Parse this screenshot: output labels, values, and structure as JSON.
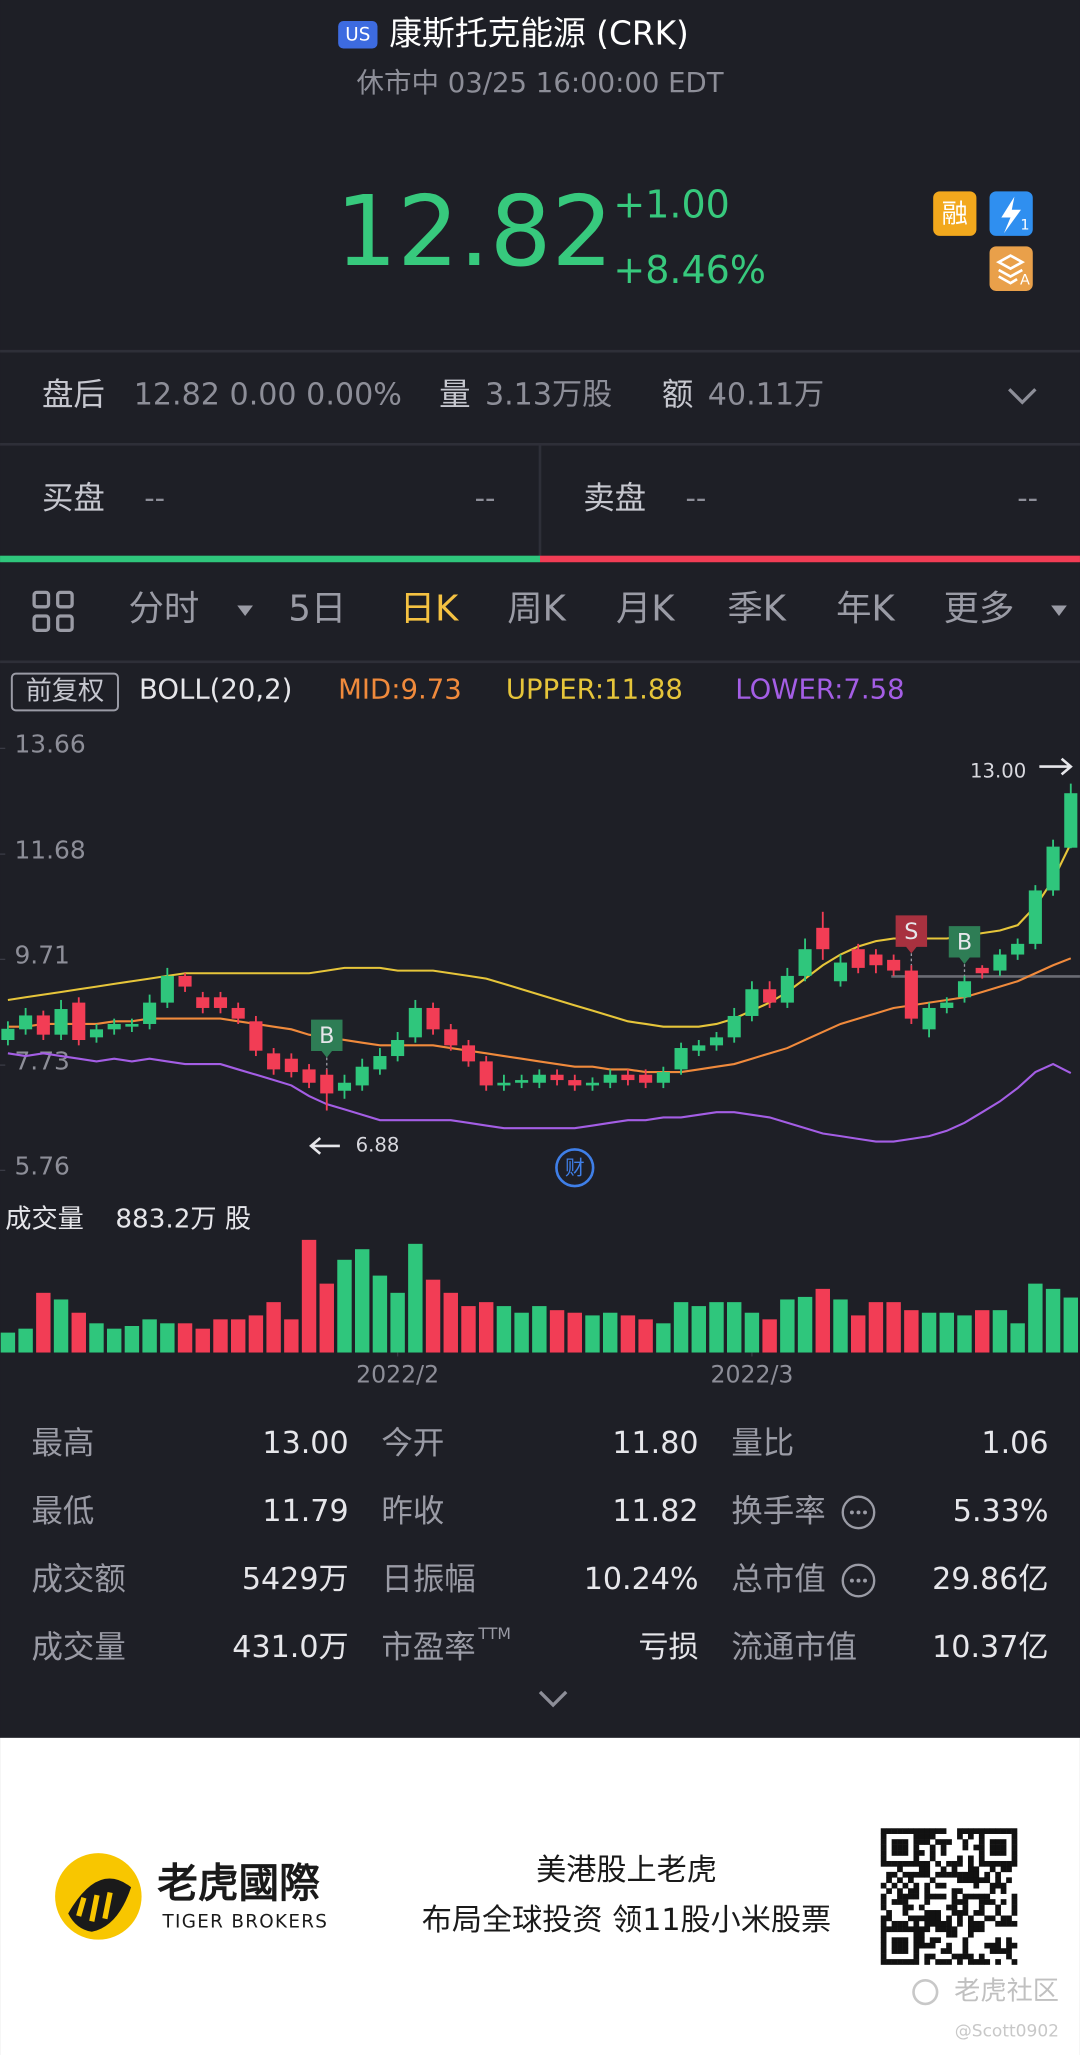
{
  "header": {
    "badge": "US",
    "title": "康斯托克能源 (CRK)",
    "status": "休市中 03/25 16:00:00 EDT"
  },
  "quote": {
    "price": "12.82",
    "change": "+1.00",
    "change_pct": "+8.46%",
    "badges": [
      "融",
      "1",
      "A"
    ]
  },
  "after_hours": {
    "label": "盘后",
    "text": "12.82 0.00 0.00%",
    "volume_label": "量",
    "volume": "3.13万股",
    "amount_label": "额",
    "amount": "40.11万"
  },
  "order_book": {
    "bid_label": "买盘",
    "bid": "--",
    "bid_size": "--",
    "ask_label": "卖盘",
    "ask": "--",
    "ask_size": "--"
  },
  "tabs": {
    "items": [
      "分时",
      "5日",
      "日K",
      "周K",
      "月K",
      "季K",
      "年K",
      "更多"
    ],
    "active": 2
  },
  "chart_data": {
    "type": "candlestick",
    "adjust_label": "前复权",
    "indicator": "BOLL(20,2)",
    "open": [
      8.2,
      8.4,
      8.66,
      8.3,
      8.9,
      8.25,
      8.4,
      8.45,
      8.5,
      8.9,
      9.4,
      9.0,
      9.0,
      8.8,
      8.55,
      7.95,
      7.85,
      7.65,
      7.55,
      7.25,
      7.35,
      7.65,
      7.9,
      8.25,
      8.8,
      8.4,
      8.1,
      7.8,
      7.35,
      7.4,
      7.4,
      7.55,
      7.45,
      7.35,
      7.4,
      7.55,
      7.55,
      7.4,
      7.65,
      8.0,
      8.1,
      8.25,
      8.65,
      9.15,
      8.9,
      9.4,
      10.3,
      9.3,
      9.9,
      9.8,
      9.7,
      9.5,
      8.4,
      8.8,
      9.0,
      9.55,
      9.5,
      9.8,
      10.0,
      11.0,
      11.8
    ],
    "close": [
      8.41,
      8.66,
      8.3,
      8.78,
      8.2,
      8.4,
      8.5,
      8.5,
      8.9,
      9.4,
      9.2,
      8.8,
      8.8,
      8.6,
      8.0,
      7.65,
      7.6,
      7.4,
      7.2,
      7.4,
      7.7,
      7.9,
      8.2,
      8.8,
      8.4,
      8.1,
      7.8,
      7.35,
      7.4,
      7.45,
      7.55,
      7.45,
      7.35,
      7.4,
      7.55,
      7.45,
      7.4,
      7.6,
      8.05,
      8.1,
      8.25,
      8.65,
      9.15,
      8.9,
      9.4,
      9.9,
      9.9,
      9.65,
      9.55,
      9.6,
      9.5,
      8.6,
      8.8,
      8.9,
      9.3,
      9.45,
      9.8,
      10.0,
      11.0,
      11.82,
      12.82
    ],
    "high": [
      8.55,
      8.8,
      8.75,
      8.95,
      9.0,
      8.5,
      8.6,
      8.6,
      9.05,
      9.55,
      9.45,
      9.1,
      9.1,
      8.9,
      8.65,
      8.05,
      7.95,
      7.75,
      7.65,
      7.55,
      7.85,
      8.05,
      8.35,
      8.95,
      8.9,
      8.5,
      8.2,
      7.9,
      7.55,
      7.55,
      7.65,
      7.65,
      7.55,
      7.5,
      7.65,
      7.65,
      7.65,
      7.7,
      8.15,
      8.2,
      8.35,
      8.8,
      9.3,
      9.3,
      9.55,
      10.1,
      10.6,
      9.8,
      10.0,
      9.9,
      9.8,
      9.6,
      8.9,
      9.0,
      9.4,
      9.6,
      9.9,
      10.1,
      11.1,
      11.95,
      13.0
    ],
    "low": [
      8.1,
      8.3,
      8.2,
      8.2,
      8.1,
      8.15,
      8.3,
      8.35,
      8.4,
      8.8,
      9.1,
      8.7,
      8.7,
      8.5,
      7.9,
      7.55,
      7.5,
      7.3,
      6.88,
      7.1,
      7.25,
      7.55,
      7.8,
      8.15,
      8.3,
      8.0,
      7.7,
      7.25,
      7.25,
      7.3,
      7.3,
      7.35,
      7.25,
      7.25,
      7.3,
      7.35,
      7.3,
      7.3,
      7.55,
      7.9,
      8.0,
      8.15,
      8.55,
      8.8,
      8.8,
      9.3,
      9.7,
      9.2,
      9.45,
      9.45,
      9.4,
      8.5,
      8.25,
      8.7,
      8.9,
      9.35,
      9.4,
      9.7,
      9.9,
      10.9,
      11.79
    ],
    "up_color": "#2fc67c",
    "down_color": "#f23d55",
    "ylim": [
      5.76,
      13.66
    ],
    "yticks": [
      13.66,
      11.68,
      9.71,
      7.73,
      5.76
    ],
    "bands": [
      {
        "name": "MID",
        "legend": "MID:9.73",
        "color": "#f08a3c",
        "values": [
          8.45,
          8.45,
          8.5,
          8.5,
          8.5,
          8.5,
          8.55,
          8.55,
          8.6,
          8.6,
          8.6,
          8.6,
          8.6,
          8.55,
          8.5,
          8.45,
          8.4,
          8.3,
          8.25,
          8.2,
          8.15,
          8.1,
          8.1,
          8.1,
          8.1,
          8.05,
          8.0,
          7.95,
          7.9,
          7.85,
          7.8,
          7.75,
          7.7,
          7.7,
          7.65,
          7.65,
          7.6,
          7.6,
          7.6,
          7.65,
          7.7,
          7.75,
          7.85,
          7.95,
          8.05,
          8.2,
          8.35,
          8.5,
          8.6,
          8.7,
          8.8,
          8.85,
          8.9,
          8.95,
          9.0,
          9.1,
          9.2,
          9.3,
          9.45,
          9.6,
          9.73
        ]
      },
      {
        "name": "UPPER",
        "legend": "UPPER:11.88",
        "color": "#e6c53a",
        "values": [
          8.95,
          9.0,
          9.05,
          9.1,
          9.15,
          9.2,
          9.25,
          9.3,
          9.35,
          9.4,
          9.45,
          9.45,
          9.45,
          9.45,
          9.45,
          9.45,
          9.45,
          9.45,
          9.5,
          9.55,
          9.55,
          9.55,
          9.5,
          9.5,
          9.5,
          9.45,
          9.4,
          9.35,
          9.25,
          9.15,
          9.05,
          8.95,
          8.85,
          8.75,
          8.65,
          8.55,
          8.5,
          8.45,
          8.45,
          8.45,
          8.5,
          8.6,
          8.75,
          8.9,
          9.1,
          9.35,
          9.6,
          9.8,
          9.95,
          10.05,
          10.1,
          10.1,
          10.1,
          10.1,
          10.15,
          10.2,
          10.25,
          10.35,
          10.7,
          11.2,
          11.88
        ]
      },
      {
        "name": "LOWER",
        "legend": "LOWER:7.58",
        "color": "#a45ee5",
        "values": [
          7.95,
          7.9,
          7.95,
          7.9,
          7.85,
          7.8,
          7.85,
          7.8,
          7.85,
          7.8,
          7.75,
          7.75,
          7.75,
          7.65,
          7.55,
          7.45,
          7.35,
          7.15,
          7.0,
          6.9,
          6.8,
          6.7,
          6.7,
          6.7,
          6.7,
          6.7,
          6.65,
          6.6,
          6.55,
          6.55,
          6.55,
          6.55,
          6.55,
          6.6,
          6.65,
          6.7,
          6.7,
          6.75,
          6.75,
          6.8,
          6.85,
          6.85,
          6.8,
          6.75,
          6.65,
          6.55,
          6.45,
          6.4,
          6.35,
          6.3,
          6.3,
          6.35,
          6.4,
          6.5,
          6.65,
          6.85,
          7.05,
          7.3,
          7.6,
          7.75,
          7.58
        ]
      }
    ],
    "extremes": [
      {
        "label": "13.00",
        "index": 60,
        "at": "high"
      },
      {
        "label": "6.88",
        "index": 18,
        "at": "low"
      }
    ],
    "signals": [
      {
        "text": "B",
        "index": 18,
        "color": "#2e7d55"
      },
      {
        "text": "S",
        "index": 51,
        "color": "#a8313f"
      },
      {
        "text": "B",
        "index": 54,
        "color": "#2e7d55"
      }
    ],
    "event": {
      "text": "财",
      "index": 32
    },
    "xticks": [
      {
        "value": 22,
        "label": "2022/2"
      },
      {
        "value": 42,
        "label": "2022/3"
      }
    ],
    "volume": {
      "label": "成交量",
      "value_label": "883.2万 股",
      "ylim": [
        0,
        900
      ],
      "values": [
        156,
        187,
        468,
        416,
        312,
        229,
        187,
        208,
        260,
        229,
        229,
        187,
        260,
        260,
        291,
        395,
        260,
        883.2,
        540,
        727,
        810,
        603,
        468,
        852,
        571,
        468,
        364,
        395,
        364,
        312,
        364,
        332,
        312,
        291,
        312,
        291,
        260,
        229,
        395,
        364,
        395,
        395,
        312,
        260,
        416,
        436,
        499,
        416,
        291,
        395,
        395,
        332,
        312,
        312,
        291,
        332,
        332,
        229,
        540,
        499,
        431
      ]
    }
  },
  "stats": [
    [
      {
        "label": "最高",
        "value": "13.00"
      },
      {
        "label": "今开",
        "value": "11.80"
      },
      {
        "label": "量比",
        "value": "1.06"
      }
    ],
    [
      {
        "label": "最低",
        "value": "11.79"
      },
      {
        "label": "昨收",
        "value": "11.82"
      },
      {
        "label": "换手率",
        "value": "5.33%",
        "info": true
      }
    ],
    [
      {
        "label": "成交额",
        "value": "5429万"
      },
      {
        "label": "日振幅",
        "value": "10.24%"
      },
      {
        "label": "总市值",
        "value": "29.86亿",
        "info": true
      }
    ],
    [
      {
        "label": "成交量",
        "value": "431.0万"
      },
      {
        "label": "市盈率",
        "sup": "TTM",
        "value": "亏损"
      },
      {
        "label": "流通市值",
        "value": "10.37亿"
      }
    ]
  ],
  "footer": {
    "brand": "老虎國際",
    "brand_en": "TIGER BROKERS",
    "slogan": [
      "美港股上老虎",
      "布局全球投资 领11股小米股票"
    ],
    "watermark": "老虎社区",
    "handle": "@Scott0902"
  }
}
